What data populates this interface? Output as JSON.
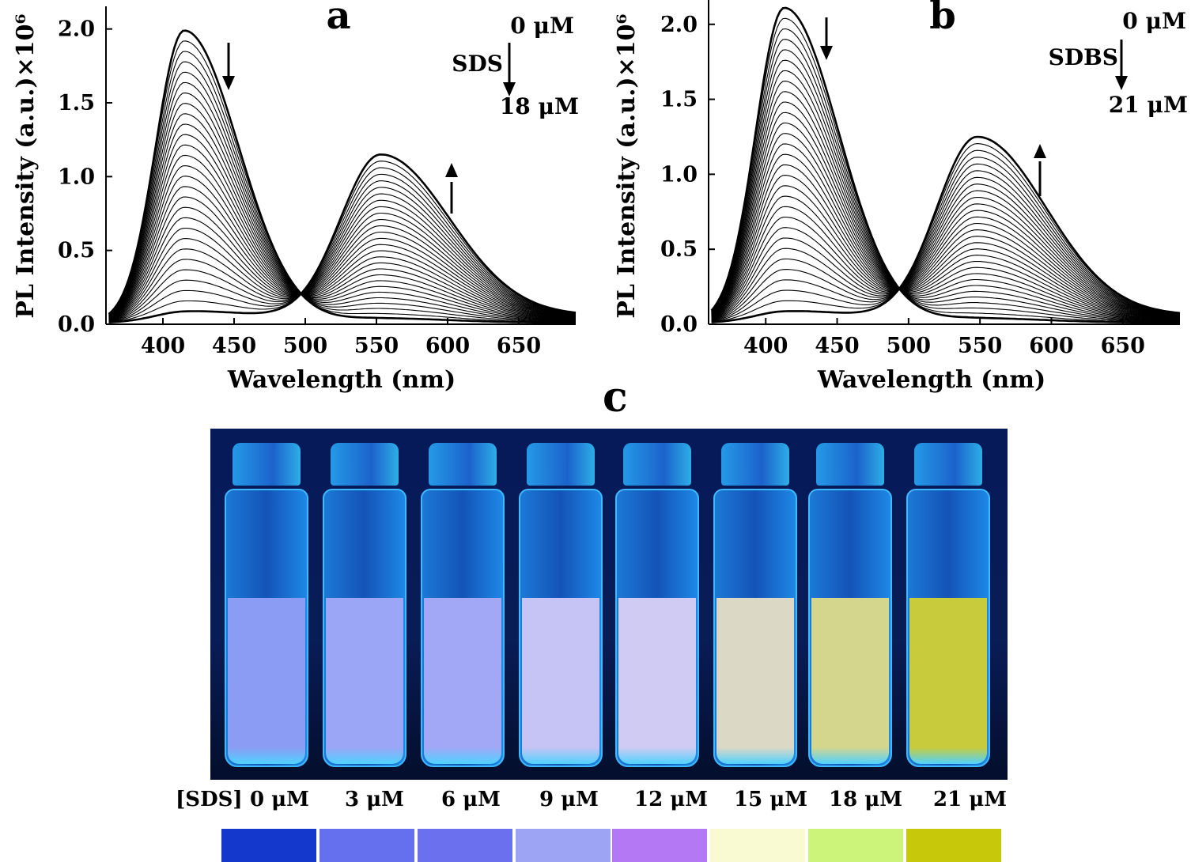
{
  "chart_data": [
    {
      "panel": "a",
      "type": "line",
      "xlabel": "Wavelength (nm)",
      "ylabel": "PL Intensity (a.u.)×10⁶",
      "xlim": [
        360,
        690
      ],
      "ylim": [
        0,
        2.1
      ],
      "xticks": [
        400,
        450,
        500,
        550,
        600,
        650
      ],
      "yticks": [
        "0.0",
        "0.5",
        "1.0",
        "1.5",
        "2.0"
      ],
      "xtick_labels": [
        "400",
        "450",
        "500",
        "550",
        "600",
        "650"
      ],
      "series_count": 28,
      "series_description_peaks": {
        "blue_peak_nm": 415,
        "blue_peak_max": 1.98,
        "green_peak_nm": 553,
        "green_peak_max": 1.09,
        "isosbestic_nm": 503,
        "isosbestic_value": 0.23
      },
      "annotations": {
        "start_label": "0 μM",
        "reagent_label": "SDS",
        "end_label": "18 μM"
      }
    },
    {
      "panel": "b",
      "type": "line",
      "xlabel": "Wavelength (nm)",
      "ylabel": "PL Intensity (a.u.)×10⁶",
      "xlim": [
        360,
        690
      ],
      "ylim": [
        0,
        2.12
      ],
      "xticks": [
        400,
        450,
        500,
        550,
        600,
        650
      ],
      "yticks": [
        "0.0",
        "0.5",
        "1.0",
        "1.5",
        "2.0"
      ],
      "xtick_labels": [
        "400",
        "450",
        "500",
        "550",
        "600",
        "650"
      ],
      "series_count": 30,
      "series_description_peaks": {
        "blue_peak_nm": 413,
        "blue_peak_max": 2.1,
        "green_peak_nm": 548,
        "green_peak_max": 1.19,
        "isosbestic_nm": 501,
        "isosbestic_value": 0.27
      },
      "annotations": {
        "start_label": "0 μM",
        "reagent_label": "SDBS",
        "end_label": "21 μM"
      }
    }
  ],
  "panels": {
    "a_letter": "a",
    "b_letter": "b",
    "c_letter": "c"
  },
  "photo": {
    "vial_count": 8,
    "liquid_colors": [
      "#8a9cf4",
      "#9ba6f6",
      "#a2a8f6",
      "#c6c4f4",
      "#cfcbf2",
      "#dcd8c6",
      "#d4d68e",
      "#c8cc3c"
    ]
  },
  "concentrations": {
    "axis_label": "[SDS]",
    "values": [
      "0 μM",
      "3 μM",
      "6 μM",
      "9 μM",
      "12 μM",
      "15 μM",
      "18 μM",
      "21 μM"
    ]
  },
  "swatches": [
    "#1438cc",
    "#6470ee",
    "#6a70ee",
    "#9ea4f4",
    "#b478f4",
    "#fafad2",
    "#ccf47a",
    "#c8c80a"
  ]
}
